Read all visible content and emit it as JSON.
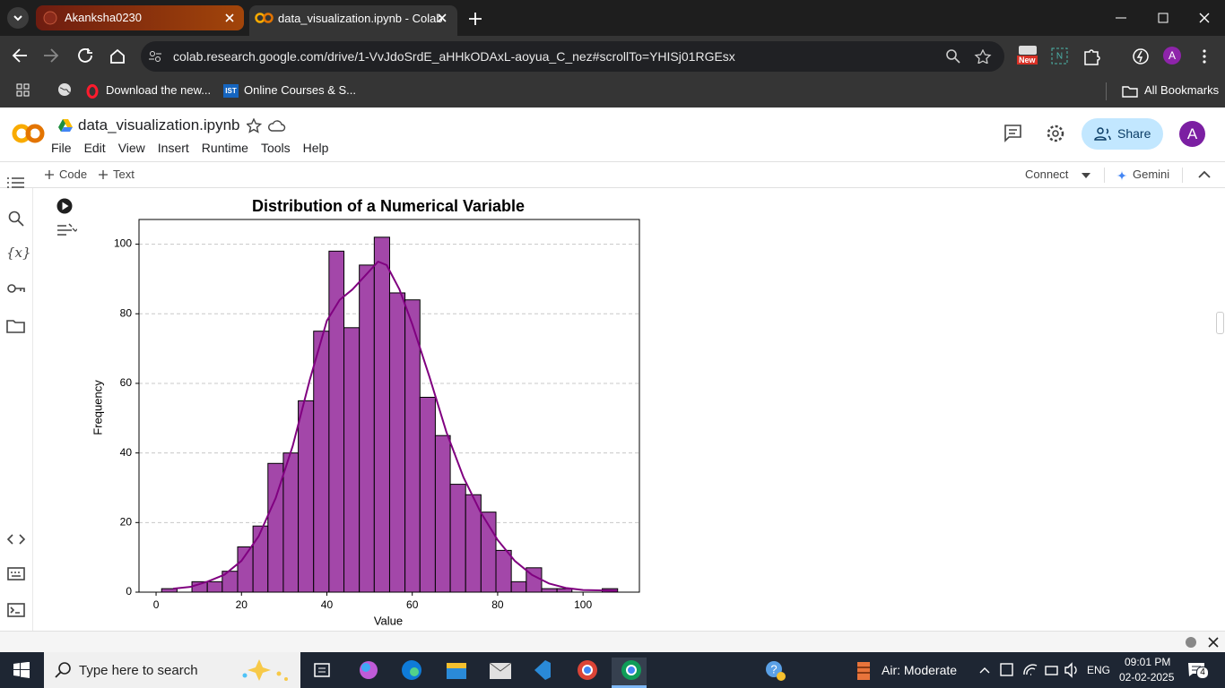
{
  "browser": {
    "tabs": [
      {
        "title": "Akanksha0230"
      },
      {
        "title": "data_visualization.ipynb - Colab"
      }
    ],
    "url": "colab.research.google.com/drive/1-VvJdoSrdE_aHHkODAxL-aoyua_C_nez#scrollTo=YHISj01RGEsx",
    "extension_badge": "New",
    "profile_initial": "A",
    "bookmarks": [
      {
        "label": "Download the new..."
      },
      {
        "label": "Online Courses & S...",
        "icon_text": "IST"
      }
    ],
    "all_bookmarks": "All Bookmarks"
  },
  "colab": {
    "notebook_name": "data_visualization.ipynb",
    "menu": [
      "File",
      "Edit",
      "View",
      "Insert",
      "Runtime",
      "Tools",
      "Help"
    ],
    "share": "Share",
    "avatar": "A",
    "sidebar_variables": "{x}",
    "toolbar": {
      "add_code": "Code",
      "add_text": "Text",
      "connect": "Connect",
      "gemini": "Gemini"
    }
  },
  "chart_data": {
    "type": "histogram",
    "title": "Distribution of a Numerical Variable",
    "x_label": "Value",
    "y_label": "Frequency",
    "bins": [
      1.3,
      4.9,
      8.4,
      12.0,
      15.5,
      19.1,
      22.7,
      26.2,
      29.8,
      33.3,
      36.9,
      40.5,
      44.0,
      47.6,
      51.1,
      54.7,
      58.3,
      61.8,
      65.4,
      68.9,
      72.5,
      76.1,
      79.6,
      83.2,
      86.7,
      90.3,
      93.9,
      97.4,
      101.0,
      104.5,
      108.1
    ],
    "values": [
      1,
      0,
      3,
      3,
      6,
      13,
      19,
      37,
      40,
      55,
      75,
      98,
      76,
      94,
      102,
      86,
      84,
      56,
      45,
      31,
      28,
      23,
      12,
      3,
      7,
      1,
      1,
      0,
      0,
      1
    ],
    "color": "#a347a9",
    "edge_color": "#000000",
    "kde": {
      "color": "#800080",
      "x": [
        4,
        8,
        12,
        16,
        20,
        24,
        28,
        32,
        36,
        40,
        43,
        46,
        49,
        52,
        54,
        57,
        60,
        64,
        68,
        72,
        76,
        80,
        84,
        88,
        92,
        96,
        100,
        104,
        108
      ],
      "y": [
        1,
        1.5,
        3,
        5,
        9,
        16,
        27,
        42,
        61,
        78,
        84,
        87,
        91,
        95,
        94,
        87,
        77,
        62,
        46,
        33,
        23,
        15,
        9,
        5,
        2.5,
        1.2,
        0.6,
        0.5,
        0.4
      ]
    },
    "xlim": [
      -4.0,
      113.2
    ],
    "ylim": [
      0,
      107.1
    ],
    "xticks": [
      0,
      20,
      40,
      60,
      80,
      100
    ],
    "yticks": [
      0,
      20,
      40,
      60,
      80,
      100
    ],
    "grid": "y",
    "grid_style": "dashed"
  },
  "taskbar": {
    "search": "Type here to search",
    "weather": "Air: Moderate",
    "language": "ENG",
    "time": "09:01 PM",
    "date": "02-02-2025",
    "notifications": "4"
  }
}
